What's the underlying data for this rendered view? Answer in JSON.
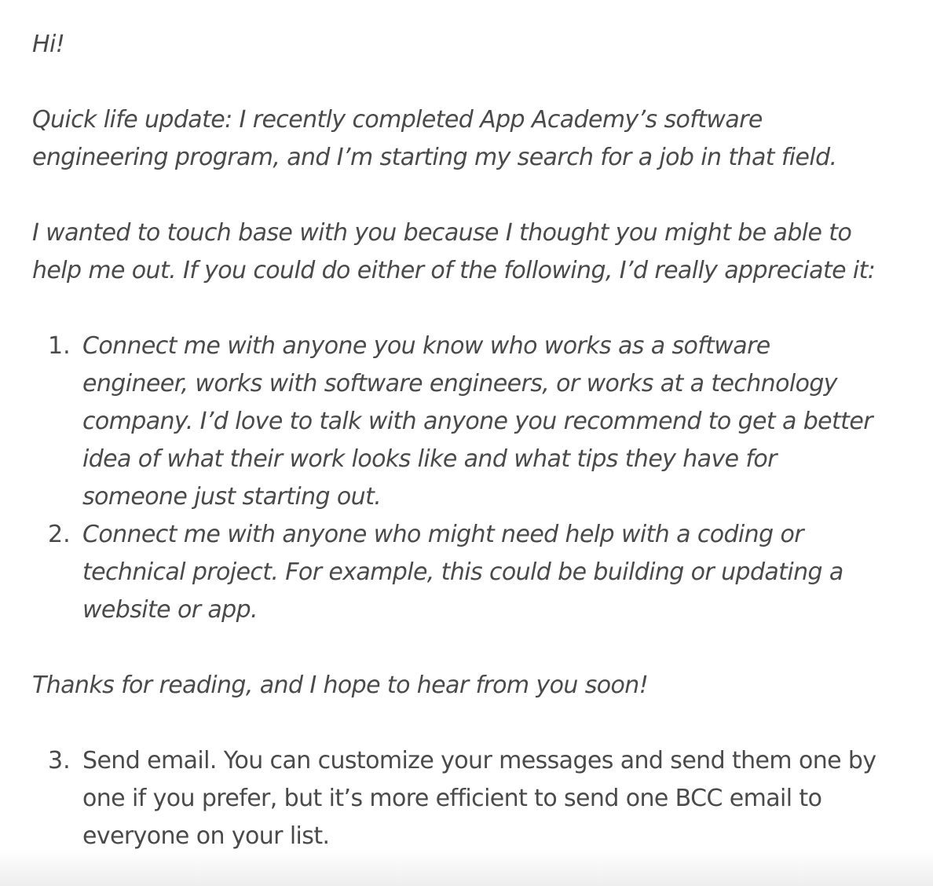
{
  "email_template": {
    "greeting": "Hi!",
    "update": "Quick life update: I recently completed App Academy’s software engineering program, and I’m starting my search for a job in that field.",
    "request_intro": "I wanted to touch base with you because I thought you might be able to help me out. If you could do either of the following, I’d really appreciate it:",
    "requests": [
      {
        "number": "1.",
        "text": "Connect me with anyone you know who works as a software engineer, works with software engineers, or works at a technology company. I’d love to talk with anyone you recommend to get a better idea of what their work looks like and what tips they have for someone just starting out."
      },
      {
        "number": "2.",
        "text": "Connect me with anyone who might need help with a coding or technical project. For example, this could be building or updating a website or app."
      }
    ],
    "closing": "Thanks for reading, and I hope to hear from you soon!"
  },
  "steps": [
    {
      "number": "3.",
      "text": "Send email. You can customize your messages and send them one by one if you prefer, but it’s more efficient to send one BCC email to everyone on your list."
    }
  ]
}
